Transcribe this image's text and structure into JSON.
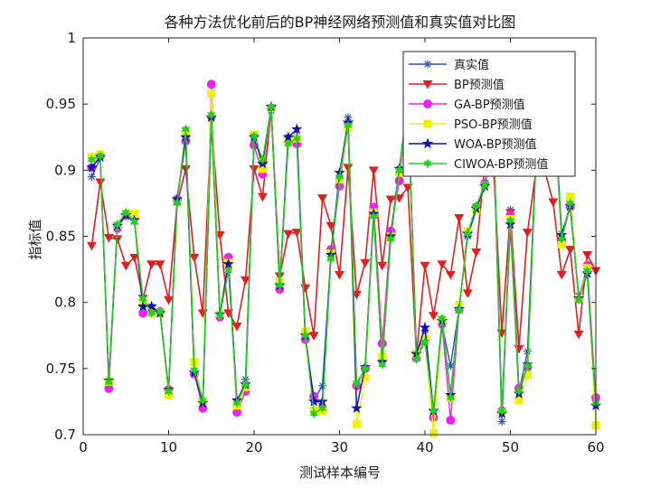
{
  "chart_data": {
    "type": "line",
    "title": "各种方法优化前后的BP神经网络预测值和真实值对比图",
    "xlabel": "测试样本编号",
    "ylabel": "指标值",
    "xlim": [
      0,
      60
    ],
    "ylim": [
      0.7,
      1.0
    ],
    "xticks": [
      0,
      10,
      20,
      30,
      40,
      50,
      60
    ],
    "yticks": [
      0.7,
      0.75,
      0.8,
      0.85,
      0.9,
      0.95,
      1.0
    ],
    "xtick_labels": [
      "0",
      "10",
      "20",
      "30",
      "40",
      "50",
      "60"
    ],
    "ytick_labels": [
      "0.7",
      "0.75",
      "0.8",
      "0.85",
      "0.9",
      "0.95",
      "1"
    ],
    "grid": false,
    "legend_position": "top-right",
    "x": [
      1,
      2,
      3,
      4,
      5,
      6,
      7,
      8,
      9,
      10,
      11,
      12,
      13,
      14,
      15,
      16,
      17,
      18,
      19,
      20,
      21,
      22,
      23,
      24,
      25,
      26,
      27,
      28,
      29,
      30,
      31,
      32,
      33,
      34,
      35,
      36,
      37,
      38,
      39,
      40,
      41,
      42,
      43,
      44,
      45,
      46,
      47,
      48,
      49,
      50,
      51,
      52,
      53,
      54,
      55,
      56,
      57,
      58,
      59,
      60
    ],
    "series": [
      {
        "name": "真实值",
        "color": "#2f4fb0",
        "marker": "asterisk",
        "values": [
          0.895,
          0.909,
          0.741,
          0.858,
          0.866,
          0.862,
          0.797,
          0.797,
          0.792,
          0.734,
          0.878,
          0.925,
          0.747,
          0.722,
          0.94,
          0.79,
          0.829,
          0.723,
          0.742,
          0.925,
          0.905,
          0.945,
          0.813,
          0.925,
          0.925,
          0.772,
          0.726,
          0.737,
          0.835,
          0.891,
          0.94,
          0.738,
          0.75,
          0.866,
          0.758,
          0.852,
          0.901,
          0.95,
          0.76,
          0.779,
          0.714,
          0.783,
          0.752,
          0.796,
          0.85,
          0.87,
          0.887,
          0.93,
          0.71,
          0.87,
          0.732,
          0.763,
          0.912,
          0.905,
          0.962,
          0.852,
          0.872,
          0.805,
          0.822,
          0.722
        ]
      },
      {
        "name": "BP预测值",
        "color": "#e02020",
        "marker": "triangle-down",
        "values": [
          0.843,
          0.891,
          0.849,
          0.848,
          0.828,
          0.834,
          0.803,
          0.829,
          0.829,
          0.802,
          0.875,
          0.901,
          0.834,
          0.792,
          0.938,
          0.851,
          0.792,
          0.782,
          0.817,
          0.901,
          0.88,
          0.946,
          0.82,
          0.852,
          0.853,
          0.811,
          0.775,
          0.879,
          0.858,
          0.821,
          0.902,
          0.806,
          0.83,
          0.9,
          0.828,
          0.878,
          0.879,
          0.887,
          0.76,
          0.828,
          0.79,
          0.829,
          0.821,
          0.864,
          0.807,
          0.838,
          0.905,
          0.907,
          0.777,
          0.868,
          0.765,
          0.853,
          0.9,
          0.9,
          0.876,
          0.821,
          0.84,
          0.776,
          0.836,
          0.824
        ]
      },
      {
        "name": "GA-BP预测值",
        "color": "#ee22ee",
        "marker": "circle",
        "values": [
          0.902,
          0.911,
          0.735,
          0.856,
          0.866,
          0.864,
          0.792,
          0.793,
          0.793,
          0.734,
          0.878,
          0.922,
          0.746,
          0.72,
          0.965,
          0.789,
          0.834,
          0.717,
          0.733,
          0.919,
          0.897,
          0.947,
          0.81,
          0.921,
          0.92,
          0.772,
          0.729,
          0.72,
          0.84,
          0.888,
          0.935,
          0.737,
          0.75,
          0.872,
          0.769,
          0.854,
          0.892,
          0.952,
          0.758,
          0.772,
          0.713,
          0.784,
          0.711,
          0.795,
          0.853,
          0.872,
          0.89,
          0.933,
          0.718,
          0.866,
          0.735,
          0.751,
          0.91,
          0.909,
          0.958,
          0.847,
          0.873,
          0.803,
          0.828,
          0.728
        ]
      },
      {
        "name": "PSO-BP预测值",
        "color": "#f0f000",
        "marker": "square",
        "values": [
          0.91,
          0.912,
          0.74,
          0.858,
          0.867,
          0.867,
          0.801,
          0.792,
          0.792,
          0.73,
          0.876,
          0.929,
          0.755,
          0.725,
          0.958,
          0.791,
          0.83,
          0.722,
          0.736,
          0.927,
          0.901,
          0.947,
          0.816,
          0.922,
          0.924,
          0.778,
          0.718,
          0.718,
          0.837,
          0.893,
          0.932,
          0.708,
          0.743,
          0.868,
          0.759,
          0.85,
          0.898,
          0.948,
          0.761,
          0.773,
          0.701,
          0.786,
          0.728,
          0.798,
          0.854,
          0.87,
          0.888,
          0.931,
          0.717,
          0.863,
          0.726,
          0.745,
          0.908,
          0.906,
          0.96,
          0.844,
          0.88,
          0.803,
          0.826,
          0.707
        ]
      },
      {
        "name": "WOA-BP预测值",
        "color": "#0d0db0",
        "marker": "pentagram",
        "values": [
          0.902,
          0.91,
          0.741,
          0.858,
          0.866,
          0.862,
          0.797,
          0.797,
          0.792,
          0.734,
          0.878,
          0.925,
          0.747,
          0.724,
          0.94,
          0.791,
          0.829,
          0.726,
          0.738,
          0.925,
          0.905,
          0.948,
          0.813,
          0.925,
          0.931,
          0.775,
          0.725,
          0.725,
          0.836,
          0.898,
          0.936,
          0.72,
          0.751,
          0.867,
          0.755,
          0.85,
          0.901,
          0.953,
          0.761,
          0.781,
          0.718,
          0.786,
          0.73,
          0.795,
          0.852,
          0.871,
          0.888,
          0.932,
          0.716,
          0.859,
          0.731,
          0.753,
          0.911,
          0.905,
          0.961,
          0.851,
          0.873,
          0.803,
          0.822,
          0.722
        ]
      },
      {
        "name": "CIWOA-BP预测值",
        "color": "#22d022",
        "marker": "hexagram",
        "values": [
          0.908,
          0.911,
          0.74,
          0.859,
          0.868,
          0.861,
          0.803,
          0.792,
          0.793,
          0.733,
          0.875,
          0.931,
          0.749,
          0.726,
          0.942,
          0.79,
          0.824,
          0.724,
          0.738,
          0.926,
          0.908,
          0.948,
          0.813,
          0.92,
          0.924,
          0.775,
          0.716,
          0.72,
          0.833,
          0.895,
          0.934,
          0.739,
          0.75,
          0.865,
          0.753,
          0.848,
          0.9,
          0.953,
          0.757,
          0.77,
          0.718,
          0.788,
          0.728,
          0.794,
          0.852,
          0.873,
          0.889,
          0.934,
          0.718,
          0.862,
          0.733,
          0.752,
          0.908,
          0.905,
          0.96,
          0.848,
          0.875,
          0.802,
          0.824,
          0.724
        ]
      }
    ]
  }
}
